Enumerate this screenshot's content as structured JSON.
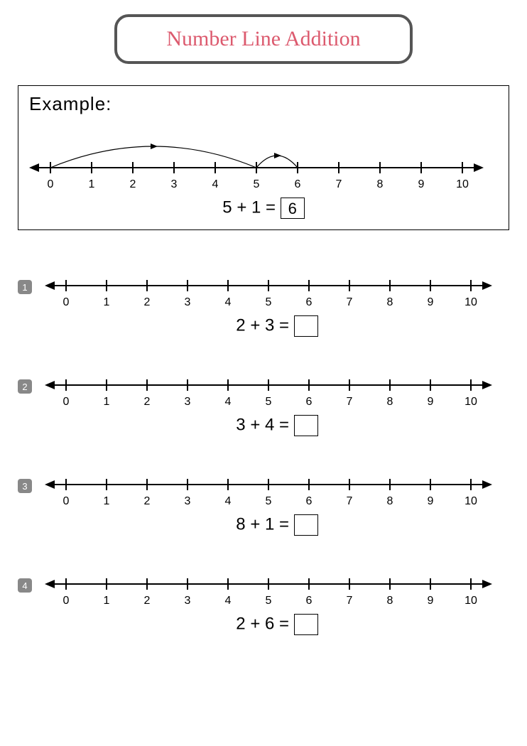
{
  "title": "Number Line Addition",
  "title_color": "#dc5a6e",
  "title_border_color": "#555555",
  "box_border_color": "#000000",
  "badge_bg": "#888888",
  "badge_fg": "#ffffff",
  "line_color": "#000000",
  "number_line": {
    "min": 0,
    "max": 10,
    "tick_step": 1,
    "tick_labels": [
      "0",
      "1",
      "2",
      "3",
      "4",
      "5",
      "6",
      "7",
      "8",
      "9",
      "10"
    ],
    "tick_height": 16,
    "line_width": 2,
    "label_fontsize": 16
  },
  "example": {
    "label": "Example:",
    "equation_left": "5 + 1 =",
    "answer": "6",
    "arcs": [
      {
        "from": 0,
        "to": 5,
        "height": 60
      },
      {
        "from": 5,
        "to": 6,
        "height": 34
      }
    ]
  },
  "problems": [
    {
      "badge": "1",
      "equation_left": "2 + 3 =",
      "answer": ""
    },
    {
      "badge": "2",
      "equation_left": "3 + 4 =",
      "answer": ""
    },
    {
      "badge": "3",
      "equation_left": "8 + 1 =",
      "answer": ""
    },
    {
      "badge": "4",
      "equation_left": "2 + 6 =",
      "answer": ""
    }
  ]
}
